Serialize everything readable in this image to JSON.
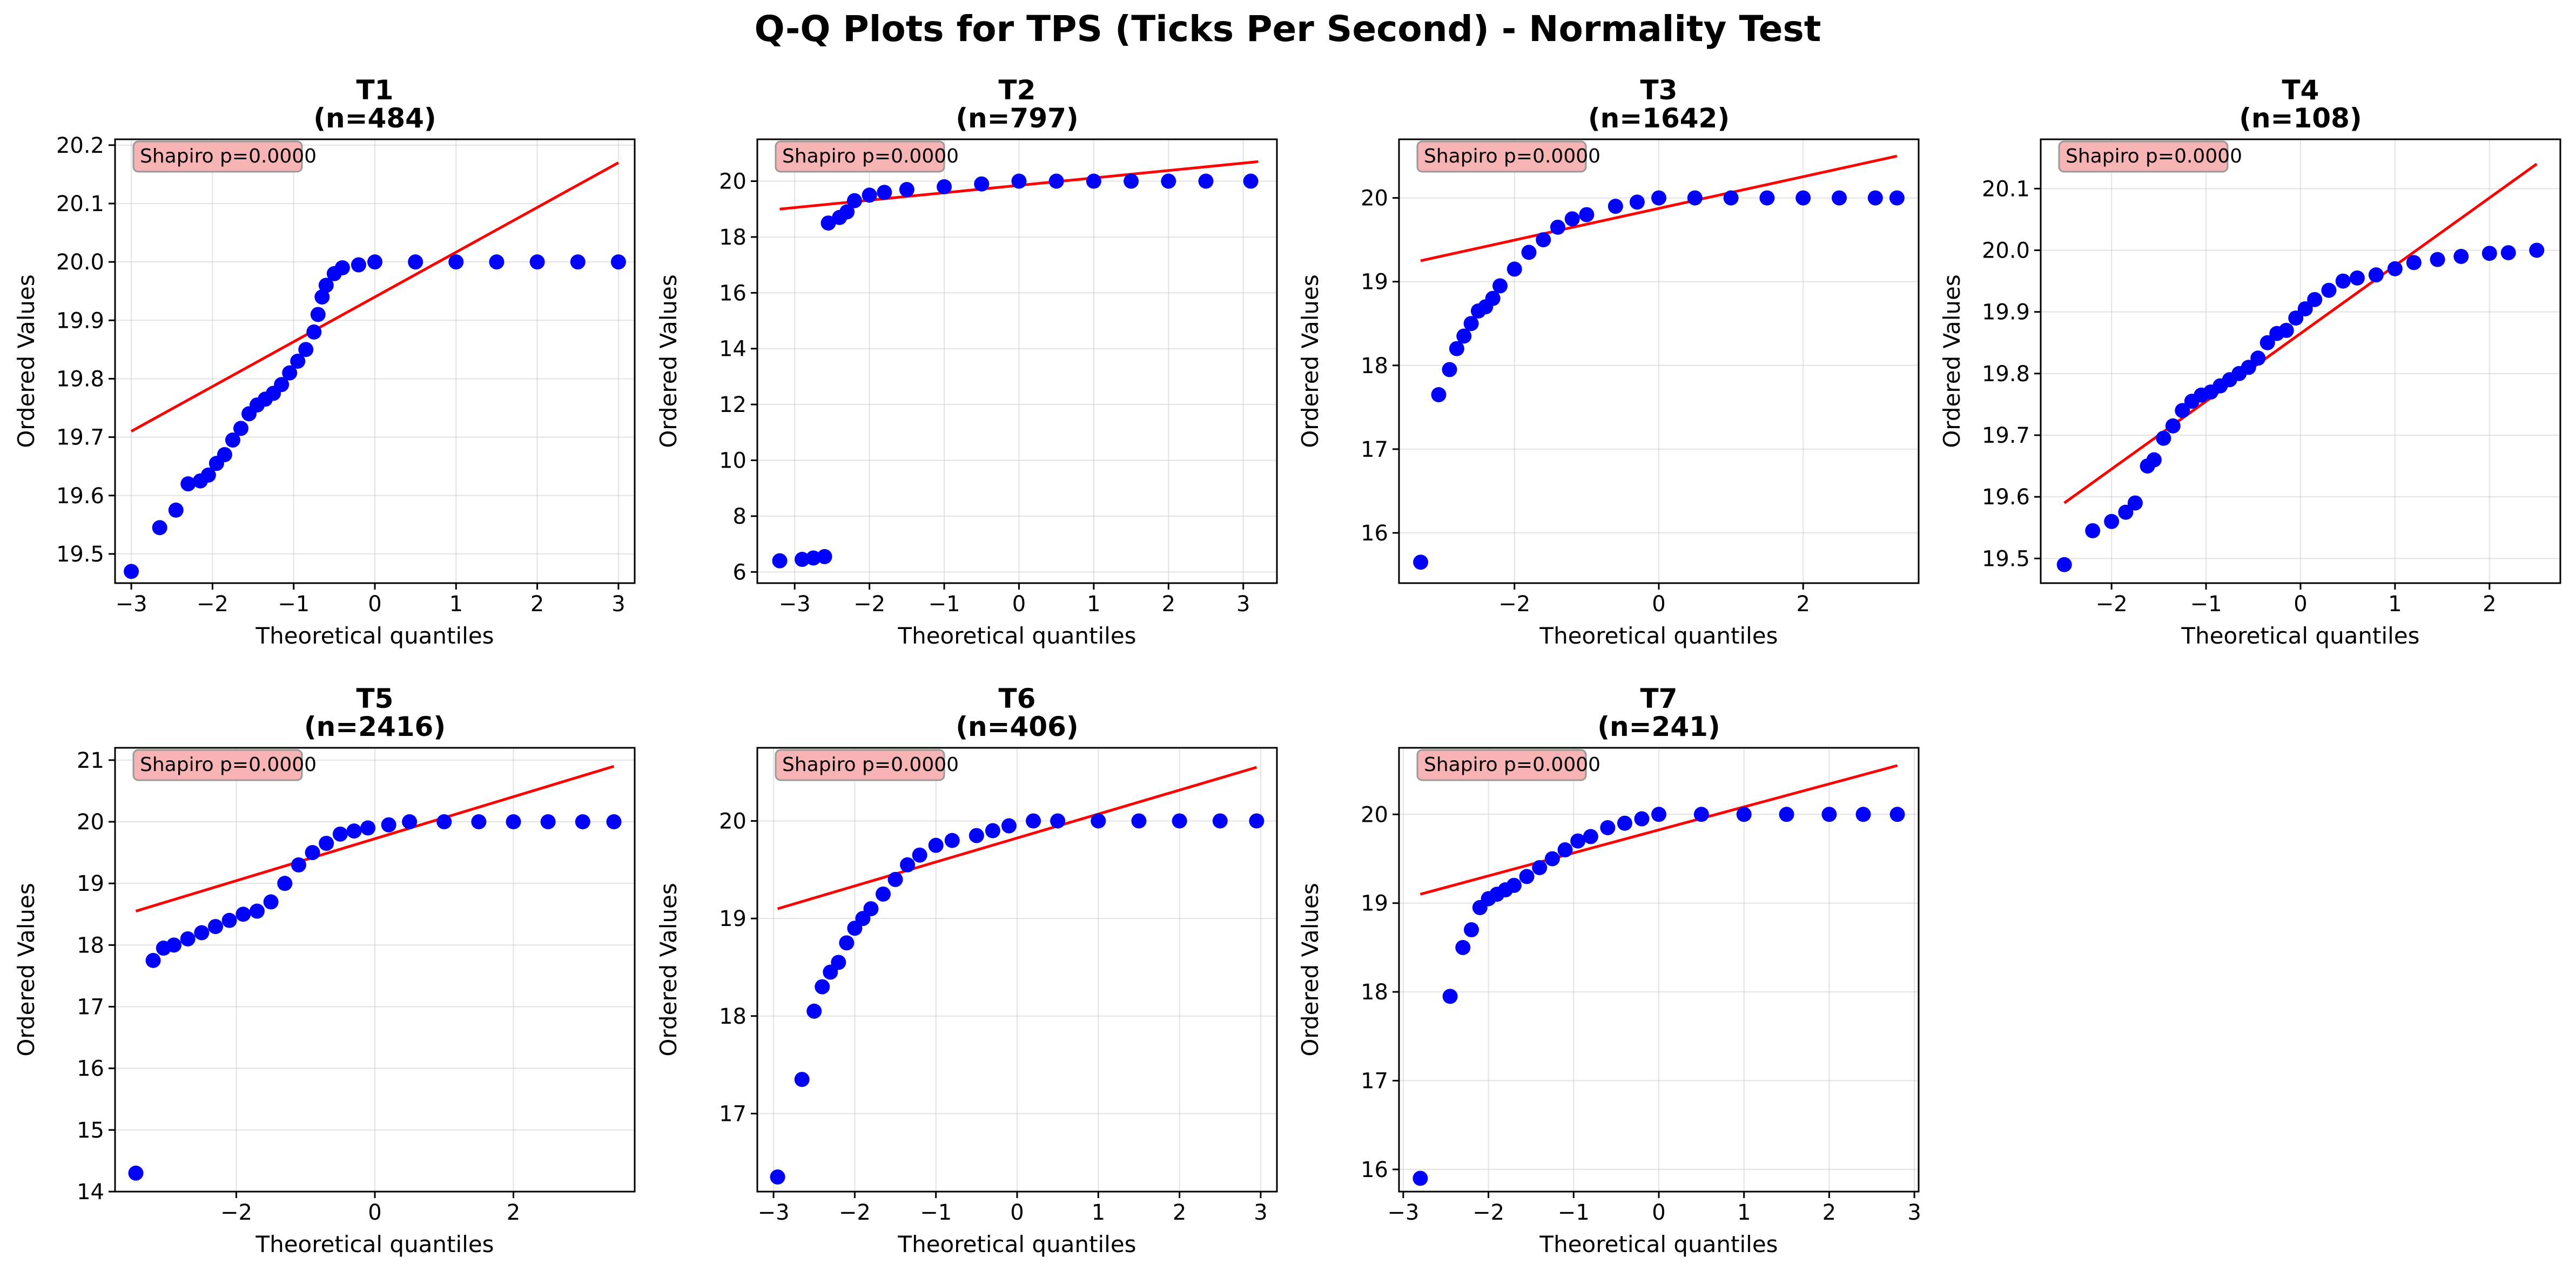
{
  "figure": {
    "title": "Q-Q Plots for TPS (Ticks Per Second) - Normality Test"
  },
  "colors": {
    "points": "#0000ff",
    "line": "#ff0000",
    "annotation_fill": "#f8b4b4",
    "annotation_stroke": "#999999"
  },
  "chart_data": [
    {
      "type": "scatter",
      "title": "T1",
      "subtitle": "(n=484)",
      "xlabel": "Theoretical quantiles",
      "ylabel": "Ordered Values",
      "annotation": "Shapiro p=0.0000",
      "xlim": [
        -3.2,
        3.2
      ],
      "ylim": [
        19.45,
        20.21
      ],
      "xticks": [
        -3,
        -2,
        -1,
        0,
        1,
        2,
        3
      ],
      "yticks": [
        19.5,
        19.6,
        19.7,
        19.8,
        19.9,
        20.0,
        20.1,
        20.2
      ],
      "ytick_labels": [
        "19.5",
        "19.6",
        "19.7",
        "19.8",
        "19.9",
        "20.0",
        "20.1",
        "20.2"
      ],
      "grid": true,
      "fit_line": {
        "x": [
          -3.0,
          3.0
        ],
        "y": [
          19.71,
          20.17
        ]
      },
      "points": [
        [
          -3.0,
          19.47
        ],
        [
          -2.65,
          19.545
        ],
        [
          -2.45,
          19.575
        ],
        [
          -2.3,
          19.62
        ],
        [
          -2.15,
          19.625
        ],
        [
          -2.05,
          19.635
        ],
        [
          -1.95,
          19.655
        ],
        [
          -1.85,
          19.67
        ],
        [
          -1.75,
          19.695
        ],
        [
          -1.65,
          19.715
        ],
        [
          -1.55,
          19.74
        ],
        [
          -1.45,
          19.755
        ],
        [
          -1.35,
          19.765
        ],
        [
          -1.25,
          19.775
        ],
        [
          -1.15,
          19.79
        ],
        [
          -1.05,
          19.81
        ],
        [
          -0.95,
          19.83
        ],
        [
          -0.85,
          19.85
        ],
        [
          -0.75,
          19.88
        ],
        [
          -0.7,
          19.91
        ],
        [
          -0.65,
          19.94
        ],
        [
          -0.6,
          19.96
        ],
        [
          -0.5,
          19.98
        ],
        [
          -0.4,
          19.99
        ],
        [
          -0.2,
          19.995
        ],
        [
          0,
          20.0
        ],
        [
          0.5,
          20.0
        ],
        [
          1.0,
          20.0
        ],
        [
          1.5,
          20.0
        ],
        [
          2.0,
          20.0
        ],
        [
          2.5,
          20.0
        ],
        [
          3.0,
          20.0
        ]
      ]
    },
    {
      "type": "scatter",
      "title": "T2",
      "subtitle": "(n=797)",
      "xlabel": "Theoretical quantiles",
      "ylabel": "Ordered Values",
      "annotation": "Shapiro p=0.0000",
      "xlim": [
        -3.5,
        3.45
      ],
      "ylim": [
        5.6,
        21.5
      ],
      "xticks": [
        -3,
        -2,
        -1,
        0,
        1,
        2,
        3
      ],
      "yticks": [
        6,
        8,
        10,
        12,
        14,
        16,
        18,
        20
      ],
      "ytick_labels": [
        "6",
        "8",
        "10",
        "12",
        "14",
        "16",
        "18",
        "20"
      ],
      "grid": true,
      "fit_line": {
        "x": [
          -3.2,
          3.2
        ],
        "y": [
          19.0,
          20.7
        ]
      },
      "points": [
        [
          -3.2,
          6.4
        ],
        [
          -2.9,
          6.45
        ],
        [
          -2.75,
          6.5
        ],
        [
          -2.6,
          6.55
        ],
        [
          -2.55,
          18.5
        ],
        [
          -2.4,
          18.7
        ],
        [
          -2.3,
          18.9
        ],
        [
          -2.2,
          19.3
        ],
        [
          -2.0,
          19.5
        ],
        [
          -1.8,
          19.6
        ],
        [
          -1.5,
          19.7
        ],
        [
          -1.0,
          19.8
        ],
        [
          -0.5,
          19.9
        ],
        [
          0,
          20.0
        ],
        [
          0.5,
          20.0
        ],
        [
          1.0,
          20.0
        ],
        [
          1.5,
          20.0
        ],
        [
          2.0,
          20.0
        ],
        [
          2.5,
          20.0
        ],
        [
          3.1,
          20.0
        ]
      ]
    },
    {
      "type": "scatter",
      "title": "T3",
      "subtitle": "(n=1642)",
      "xlabel": "Theoretical quantiles",
      "ylabel": "Ordered Values",
      "annotation": "Shapiro p=0.0000",
      "xlim": [
        -3.6,
        3.6
      ],
      "ylim": [
        15.4,
        20.7
      ],
      "xticks": [
        -2,
        0,
        2
      ],
      "yticks": [
        16,
        17,
        18,
        19,
        20
      ],
      "ytick_labels": [
        "16",
        "17",
        "18",
        "19",
        "20"
      ],
      "grid": true,
      "fit_line": {
        "x": [
          -3.3,
          3.3
        ],
        "y": [
          19.25,
          20.5
        ]
      },
      "points": [
        [
          -3.3,
          15.65
        ],
        [
          -3.05,
          17.65
        ],
        [
          -2.9,
          17.95
        ],
        [
          -2.8,
          18.2
        ],
        [
          -2.7,
          18.35
        ],
        [
          -2.6,
          18.5
        ],
        [
          -2.5,
          18.65
        ],
        [
          -2.4,
          18.7
        ],
        [
          -2.3,
          18.8
        ],
        [
          -2.2,
          18.95
        ],
        [
          -2.0,
          19.15
        ],
        [
          -1.8,
          19.35
        ],
        [
          -1.6,
          19.5
        ],
        [
          -1.4,
          19.65
        ],
        [
          -1.2,
          19.75
        ],
        [
          -1.0,
          19.8
        ],
        [
          -0.6,
          19.9
        ],
        [
          -0.3,
          19.95
        ],
        [
          0,
          20.0
        ],
        [
          0.5,
          20.0
        ],
        [
          1.0,
          20.0
        ],
        [
          1.5,
          20.0
        ],
        [
          2.0,
          20.0
        ],
        [
          2.5,
          20.0
        ],
        [
          3.0,
          20.0
        ],
        [
          3.3,
          20.0
        ]
      ]
    },
    {
      "type": "scatter",
      "title": "T4",
      "subtitle": "(n=108)",
      "xlabel": "Theoretical quantiles",
      "ylabel": "Ordered Values",
      "annotation": "Shapiro p=0.0000",
      "xlim": [
        -2.75,
        2.75
      ],
      "ylim": [
        19.46,
        20.18
      ],
      "xticks": [
        -2,
        -1,
        0,
        1,
        2
      ],
      "yticks": [
        19.5,
        19.6,
        19.7,
        19.8,
        19.9,
        20.0,
        20.1
      ],
      "ytick_labels": [
        "19.5",
        "19.6",
        "19.7",
        "19.8",
        "19.9",
        "20.0",
        "20.1"
      ],
      "grid": true,
      "fit_line": {
        "x": [
          -2.5,
          2.5
        ],
        "y": [
          19.59,
          20.14
        ]
      },
      "points": [
        [
          -2.5,
          19.49
        ],
        [
          -2.2,
          19.545
        ],
        [
          -2.0,
          19.56
        ],
        [
          -1.85,
          19.575
        ],
        [
          -1.75,
          19.59
        ],
        [
          -1.62,
          19.65
        ],
        [
          -1.55,
          19.66
        ],
        [
          -1.45,
          19.695
        ],
        [
          -1.35,
          19.715
        ],
        [
          -1.25,
          19.74
        ],
        [
          -1.15,
          19.755
        ],
        [
          -1.05,
          19.765
        ],
        [
          -0.95,
          19.77
        ],
        [
          -0.85,
          19.78
        ],
        [
          -0.75,
          19.79
        ],
        [
          -0.65,
          19.8
        ],
        [
          -0.55,
          19.81
        ],
        [
          -0.45,
          19.825
        ],
        [
          -0.35,
          19.85
        ],
        [
          -0.25,
          19.865
        ],
        [
          -0.15,
          19.87
        ],
        [
          -0.05,
          19.89
        ],
        [
          0.05,
          19.905
        ],
        [
          0.15,
          19.92
        ],
        [
          0.3,
          19.935
        ],
        [
          0.45,
          19.95
        ],
        [
          0.6,
          19.955
        ],
        [
          0.8,
          19.96
        ],
        [
          1.0,
          19.97
        ],
        [
          1.2,
          19.98
        ],
        [
          1.45,
          19.985
        ],
        [
          1.7,
          19.99
        ],
        [
          2.0,
          19.995
        ],
        [
          2.2,
          19.996
        ],
        [
          2.5,
          20.0
        ]
      ]
    },
    {
      "type": "scatter",
      "title": "T5",
      "subtitle": "(n=2416)",
      "xlabel": "Theoretical quantiles",
      "ylabel": "Ordered Values",
      "annotation": "Shapiro p=0.0000",
      "xlim": [
        -3.75,
        3.75
      ],
      "ylim": [
        14.0,
        21.2
      ],
      "xticks": [
        -2,
        0,
        2
      ],
      "yticks": [
        14,
        15,
        16,
        17,
        18,
        19,
        20,
        21
      ],
      "ytick_labels": [
        "14",
        "15",
        "16",
        "17",
        "18",
        "19",
        "20",
        "21"
      ],
      "grid": true,
      "fit_line": {
        "x": [
          -3.45,
          3.45
        ],
        "y": [
          18.55,
          20.9
        ]
      },
      "points": [
        [
          -3.45,
          14.3
        ],
        [
          -3.2,
          17.75
        ],
        [
          -3.05,
          17.95
        ],
        [
          -2.9,
          18.0
        ],
        [
          -2.7,
          18.1
        ],
        [
          -2.5,
          18.2
        ],
        [
          -2.3,
          18.3
        ],
        [
          -2.1,
          18.4
        ],
        [
          -1.9,
          18.5
        ],
        [
          -1.7,
          18.55
        ],
        [
          -1.5,
          18.7
        ],
        [
          -1.3,
          19.0
        ],
        [
          -1.1,
          19.3
        ],
        [
          -0.9,
          19.5
        ],
        [
          -0.7,
          19.65
        ],
        [
          -0.5,
          19.8
        ],
        [
          -0.3,
          19.85
        ],
        [
          -0.1,
          19.9
        ],
        [
          0.2,
          19.95
        ],
        [
          0.5,
          20.0
        ],
        [
          1.0,
          20.0
        ],
        [
          1.5,
          20.0
        ],
        [
          2.0,
          20.0
        ],
        [
          2.5,
          20.0
        ],
        [
          3.0,
          20.0
        ],
        [
          3.45,
          20.0
        ]
      ]
    },
    {
      "type": "scatter",
      "title": "T6",
      "subtitle": "(n=406)",
      "xlabel": "Theoretical quantiles",
      "ylabel": "Ordered Values",
      "annotation": "Shapiro p=0.0000",
      "xlim": [
        -3.2,
        3.2
      ],
      "ylim": [
        16.2,
        20.75
      ],
      "xticks": [
        -3,
        -2,
        -1,
        0,
        1,
        2,
        3
      ],
      "yticks": [
        17,
        18,
        19,
        20
      ],
      "ytick_labels": [
        "17",
        "18",
        "19",
        "20"
      ],
      "grid": true,
      "fit_line": {
        "x": [
          -2.95,
          2.95
        ],
        "y": [
          19.1,
          20.55
        ]
      },
      "points": [
        [
          -2.95,
          16.35
        ],
        [
          -2.65,
          17.35
        ],
        [
          -2.5,
          18.05
        ],
        [
          -2.4,
          18.3
        ],
        [
          -2.3,
          18.45
        ],
        [
          -2.2,
          18.55
        ],
        [
          -2.1,
          18.75
        ],
        [
          -2.0,
          18.9
        ],
        [
          -1.9,
          19.0
        ],
        [
          -1.8,
          19.1
        ],
        [
          -1.65,
          19.25
        ],
        [
          -1.5,
          19.4
        ],
        [
          -1.35,
          19.55
        ],
        [
          -1.2,
          19.65
        ],
        [
          -1.0,
          19.75
        ],
        [
          -0.8,
          19.8
        ],
        [
          -0.5,
          19.85
        ],
        [
          -0.3,
          19.9
        ],
        [
          -0.1,
          19.95
        ],
        [
          0.2,
          20.0
        ],
        [
          0.5,
          20.0
        ],
        [
          1.0,
          20.0
        ],
        [
          1.5,
          20.0
        ],
        [
          2.0,
          20.0
        ],
        [
          2.5,
          20.0
        ],
        [
          2.95,
          20.0
        ]
      ]
    },
    {
      "type": "scatter",
      "title": "T7",
      "subtitle": "(n=241)",
      "xlabel": "Theoretical quantiles",
      "ylabel": "Ordered Values",
      "annotation": "Shapiro p=0.0000",
      "xlim": [
        -3.05,
        3.05
      ],
      "ylim": [
        15.75,
        20.75
      ],
      "xticks": [
        -3,
        -2,
        -1,
        0,
        1,
        2,
        3
      ],
      "yticks": [
        16,
        17,
        18,
        19,
        20
      ],
      "ytick_labels": [
        "16",
        "17",
        "18",
        "19",
        "20"
      ],
      "grid": true,
      "fit_line": {
        "x": [
          -2.8,
          2.8
        ],
        "y": [
          19.1,
          20.55
        ]
      },
      "points": [
        [
          -2.8,
          15.9
        ],
        [
          -2.45,
          17.95
        ],
        [
          -2.3,
          18.5
        ],
        [
          -2.2,
          18.7
        ],
        [
          -2.1,
          18.95
        ],
        [
          -2.0,
          19.05
        ],
        [
          -1.9,
          19.1
        ],
        [
          -1.8,
          19.15
        ],
        [
          -1.7,
          19.2
        ],
        [
          -1.55,
          19.3
        ],
        [
          -1.4,
          19.4
        ],
        [
          -1.25,
          19.5
        ],
        [
          -1.1,
          19.6
        ],
        [
          -0.95,
          19.7
        ],
        [
          -0.8,
          19.75
        ],
        [
          -0.6,
          19.85
        ],
        [
          -0.4,
          19.9
        ],
        [
          -0.2,
          19.95
        ],
        [
          0,
          20.0
        ],
        [
          0.5,
          20.0
        ],
        [
          1.0,
          20.0
        ],
        [
          1.5,
          20.0
        ],
        [
          2.0,
          20.0
        ],
        [
          2.4,
          20.0
        ],
        [
          2.8,
          20.0
        ]
      ]
    }
  ]
}
